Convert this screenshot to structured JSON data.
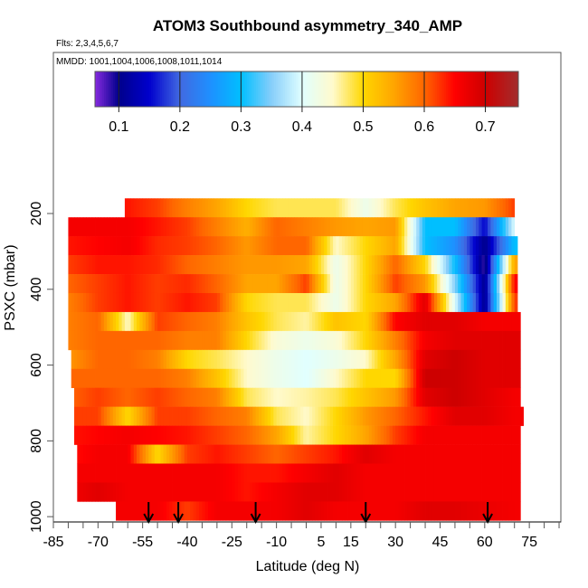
{
  "chart_data": {
    "type": "heatmap",
    "title": "ATOM3 Southbound asymmetry_340_AMP",
    "subtitle_flights": "Flts: 2,3,4,5,6,7",
    "subtitle_dates": "MMDD: 1001,1004,1006,1008,1011,1014",
    "xlabel": "Latitude (deg N)",
    "ylabel": "PSXC (mbar)",
    "xlim": [
      -85,
      85.6
    ],
    "ylim": [
      1014,
      -225
    ],
    "y_reversed": true,
    "x_ticks": [
      -85,
      -70,
      -55,
      -40,
      -25,
      -10,
      5,
      15,
      30,
      45,
      60,
      75
    ],
    "x_tick_labels": [
      "-85",
      "-70",
      "-55",
      "-40",
      "-25",
      "-10",
      "5",
      "15",
      "30",
      "45",
      "60",
      "75"
    ],
    "y_ticks": [
      200,
      400,
      600,
      800,
      1000
    ],
    "y_tick_labels": [
      "200",
      "400",
      "600",
      "800",
      "1000"
    ],
    "colorbar": {
      "range": [
        0.061,
        0.754
      ],
      "ticks": [
        0.1,
        0.2,
        0.3,
        0.4,
        0.5,
        0.6,
        0.7
      ],
      "tick_labels": [
        "0.1",
        "0.2",
        "0.3",
        "0.4",
        "0.5",
        "0.6",
        "0.7"
      ],
      "colors": [
        [
          0.06,
          "#8a2be2"
        ],
        [
          0.1,
          "#00008b"
        ],
        [
          0.15,
          "#0000cd"
        ],
        [
          0.2,
          "#4169e1"
        ],
        [
          0.25,
          "#1e90ff"
        ],
        [
          0.3,
          "#00bfff"
        ],
        [
          0.35,
          "#87cefa"
        ],
        [
          0.4,
          "#e0ffff"
        ],
        [
          0.45,
          "#fffacd"
        ],
        [
          0.5,
          "#ffd700"
        ],
        [
          0.55,
          "#ffa500"
        ],
        [
          0.6,
          "#ff6600"
        ],
        [
          0.65,
          "#ff0000"
        ],
        [
          0.7,
          "#cd0000"
        ],
        [
          0.75,
          "#a52a2a"
        ]
      ]
    },
    "knot_lats": [
      -80,
      -70,
      -60,
      -50,
      -40,
      -30,
      -20,
      -10,
      0,
      10,
      20,
      30,
      40,
      50,
      60,
      70
    ],
    "band_half_width_mbar": 25,
    "rows": [
      {
        "p": 185,
        "lat_min": -61,
        "lat_max": 70,
        "values": [
          0.64,
          0.64,
          0.64,
          0.62,
          0.58,
          0.55,
          0.5,
          0.48,
          0.48,
          0.48,
          0.42,
          0.48,
          0.52,
          0.55,
          0.56,
          0.62
        ]
      },
      {
        "p": 235,
        "lat_min": -80,
        "lat_max": 70,
        "values": [
          0.66,
          0.66,
          0.66,
          0.64,
          0.62,
          0.58,
          0.54,
          0.6,
          0.58,
          0.56,
          0.55,
          0.56,
          0.3,
          0.3,
          0.15,
          0.4
        ]
      },
      {
        "p": 285,
        "lat_min": -80,
        "lat_max": 71,
        "values": [
          0.64,
          0.65,
          0.66,
          0.63,
          0.62,
          0.6,
          0.56,
          0.6,
          0.6,
          0.45,
          0.5,
          0.55,
          0.3,
          0.25,
          0.1,
          0.3
        ]
      },
      {
        "p": 335,
        "lat_min": -80,
        "lat_max": 71,
        "values": [
          0.62,
          0.64,
          0.64,
          0.63,
          0.6,
          0.58,
          0.56,
          0.56,
          0.55,
          0.42,
          0.5,
          0.6,
          0.5,
          0.3,
          0.08,
          0.55
        ]
      },
      {
        "p": 385,
        "lat_min": -80,
        "lat_max": 71,
        "values": [
          0.6,
          0.62,
          0.64,
          0.62,
          0.63,
          0.6,
          0.55,
          0.55,
          0.62,
          0.42,
          0.5,
          0.62,
          0.56,
          0.35,
          0.1,
          0.65
        ]
      },
      {
        "p": 435,
        "lat_min": -80,
        "lat_max": 71,
        "values": [
          0.58,
          0.62,
          0.64,
          0.62,
          0.64,
          0.62,
          0.5,
          0.48,
          0.48,
          0.42,
          0.5,
          0.55,
          0.68,
          0.4,
          0.1,
          0.62
        ]
      },
      {
        "p": 485,
        "lat_min": -80,
        "lat_max": 72,
        "values": [
          0.58,
          0.6,
          0.45,
          0.62,
          0.6,
          0.58,
          0.52,
          0.48,
          0.46,
          0.52,
          0.5,
          0.65,
          0.68,
          0.68,
          0.66,
          0.66
        ]
      },
      {
        "p": 535,
        "lat_min": -80,
        "lat_max": 72,
        "values": [
          0.58,
          0.6,
          0.6,
          0.6,
          0.58,
          0.58,
          0.5,
          0.44,
          0.42,
          0.44,
          0.5,
          0.58,
          0.66,
          0.68,
          0.68,
          0.68
        ]
      },
      {
        "p": 585,
        "lat_min": -79,
        "lat_max": 72,
        "values": [
          0.56,
          0.6,
          0.6,
          0.58,
          0.5,
          0.48,
          0.45,
          0.42,
          0.4,
          0.42,
          0.45,
          0.55,
          0.68,
          0.7,
          0.68,
          0.68
        ]
      },
      {
        "p": 635,
        "lat_min": -79,
        "lat_max": 72,
        "values": [
          0.6,
          0.6,
          0.6,
          0.6,
          0.58,
          0.52,
          0.45,
          0.42,
          0.4,
          0.45,
          0.5,
          0.5,
          0.7,
          0.7,
          0.68,
          0.68
        ]
      },
      {
        "p": 685,
        "lat_min": -78,
        "lat_max": 72,
        "values": [
          0.6,
          0.62,
          0.6,
          0.62,
          0.6,
          0.58,
          0.48,
          0.45,
          0.46,
          0.48,
          0.52,
          0.56,
          0.68,
          0.7,
          0.68,
          0.66
        ]
      },
      {
        "p": 735,
        "lat_min": -78,
        "lat_max": 73,
        "values": [
          0.62,
          0.62,
          0.5,
          0.62,
          0.62,
          0.6,
          0.58,
          0.48,
          0.45,
          0.5,
          0.56,
          0.6,
          0.64,
          0.68,
          0.68,
          0.66
        ]
      },
      {
        "p": 785,
        "lat_min": -78,
        "lat_max": 72,
        "values": [
          0.64,
          0.65,
          0.66,
          0.65,
          0.64,
          0.62,
          0.6,
          0.55,
          0.46,
          0.5,
          0.55,
          0.62,
          0.66,
          0.66,
          0.66,
          0.66
        ]
      },
      {
        "p": 835,
        "lat_min": -77,
        "lat_max": 72,
        "values": [
          0.64,
          0.66,
          0.66,
          0.5,
          0.62,
          0.64,
          0.62,
          0.6,
          0.62,
          0.64,
          0.68,
          0.66,
          0.66,
          0.66,
          0.66,
          0.66
        ]
      },
      {
        "p": 885,
        "lat_min": -77,
        "lat_max": 72,
        "values": [
          0.66,
          0.66,
          0.66,
          0.66,
          0.66,
          0.66,
          0.64,
          0.64,
          0.66,
          0.68,
          0.66,
          0.66,
          0.66,
          0.66,
          0.66,
          0.66
        ]
      },
      {
        "p": 935,
        "lat_min": -77,
        "lat_max": 72,
        "values": [
          0.66,
          0.68,
          0.66,
          0.66,
          0.66,
          0.66,
          0.64,
          0.66,
          0.68,
          0.68,
          0.66,
          0.66,
          0.66,
          0.66,
          0.66,
          0.66
        ]
      },
      {
        "p": 985,
        "lat_min": -64,
        "lat_max": 72,
        "values": [
          0.66,
          0.66,
          0.66,
          0.66,
          0.62,
          0.66,
          0.66,
          0.66,
          0.68,
          0.66,
          0.66,
          0.66,
          0.68,
          0.68,
          0.67,
          0.66
        ]
      }
    ],
    "arrow_lats": [
      -53,
      -43,
      -17,
      20,
      61
    ],
    "grid": false
  }
}
